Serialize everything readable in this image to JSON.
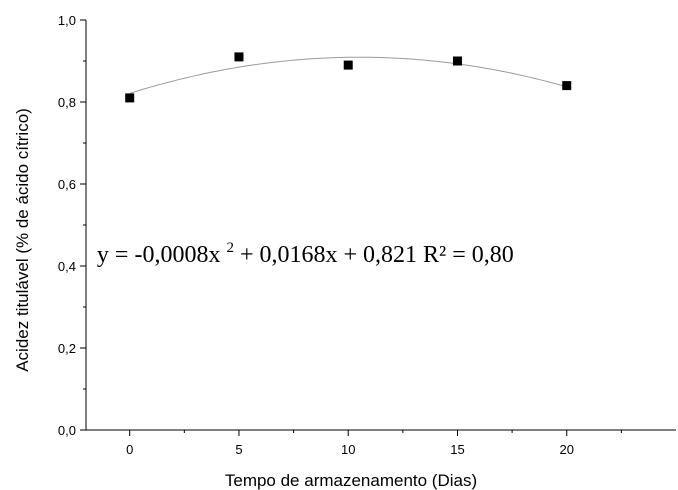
{
  "chart_data": {
    "type": "scatter",
    "title": "",
    "xlabel": "Tempo de armazenamento (Dias)",
    "ylabel": "Acidez titulável (% de ácido cítrico)",
    "xlim": [
      -2,
      25
    ],
    "ylim": [
      0,
      1
    ],
    "xticks": [
      0,
      5,
      10,
      15,
      20
    ],
    "xtick_labels": [
      "0",
      "5",
      "10",
      "15",
      "20"
    ],
    "yticks": [
      0,
      0.2,
      0.4,
      0.6,
      0.8,
      1.0
    ],
    "ytick_labels": [
      "0,0",
      "0,2",
      "0,4",
      "0,6",
      "0,8",
      "1,0"
    ],
    "grid": false,
    "series": [
      {
        "marker": "square",
        "color": "#000000",
        "points": [
          {
            "x": 0,
            "y": 0.81
          },
          {
            "x": 5,
            "y": 0.91
          },
          {
            "x": 10,
            "y": 0.89
          },
          {
            "x": 15,
            "y": 0.9
          },
          {
            "x": 20,
            "y": 0.84
          }
        ]
      }
    ],
    "fit": {
      "type": "quadratic",
      "a": -0.0008,
      "b": 0.0168,
      "c": 0.821,
      "x_range": [
        0,
        20
      ],
      "color": "#9a9a9a"
    },
    "annotation": {
      "main": "y = -0,0008x",
      "sup": "2",
      "rest": " + 0,0168x + 0,821 R² = 0,80",
      "anchor_x": -1.5,
      "anchor_y": 0.41
    }
  }
}
